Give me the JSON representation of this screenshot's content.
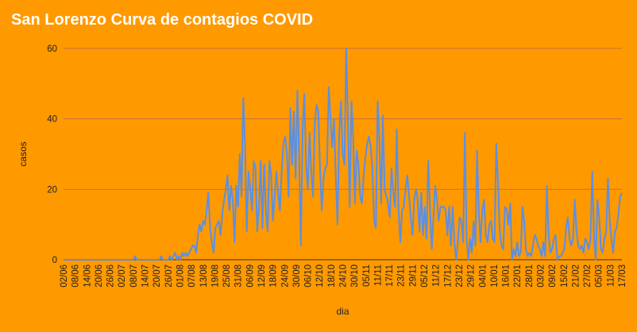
{
  "chart_data": {
    "type": "line",
    "title": "San Lorenzo Curva de contagios COVID",
    "xlabel": "dia",
    "ylabel": "casos",
    "ylim": [
      0,
      60
    ],
    "yticks": [
      0,
      20,
      40,
      60
    ],
    "grid": true,
    "legend": "none",
    "colors": {
      "background": "#FF9900",
      "line": "#5B8FE3",
      "grid": "#C9723A",
      "title": "#FFFFFF",
      "text": "#222222"
    },
    "x_tick_labels": [
      "02/06",
      "08/06",
      "14/06",
      "20/06",
      "26/06",
      "02/07",
      "08/07",
      "14/07",
      "20/07",
      "26/07",
      "01/08",
      "07/08",
      "13/08",
      "19/08",
      "25/08",
      "31/08",
      "06/09",
      "12/09",
      "18/09",
      "24/09",
      "30/09",
      "06/10",
      "12/10",
      "18/10",
      "24/10",
      "30/10",
      "05/11",
      "11/11",
      "17/11",
      "23/11",
      "29/11",
      "05/12",
      "11/12",
      "17/12",
      "23/12",
      "29/12",
      "04/01",
      "10/01",
      "16/01",
      "22/01",
      "28/01",
      "03/02",
      "09/02",
      "15/02",
      "21/02",
      "27/02",
      "05/03",
      "11/03",
      "17/03"
    ],
    "series": [
      {
        "values": [
          0,
          0,
          0,
          0,
          0,
          0,
          0,
          0,
          0,
          0,
          0,
          0,
          0,
          0,
          0,
          0,
          0,
          0,
          0,
          0,
          0,
          0,
          0,
          0,
          0,
          0,
          0,
          0,
          0,
          0,
          0,
          0,
          0,
          0,
          0,
          0,
          0,
          0,
          0,
          0,
          0,
          1,
          0,
          0,
          0,
          0,
          0,
          0,
          0,
          0,
          0,
          0,
          0,
          0,
          0,
          0,
          1,
          0,
          0,
          0,
          0,
          1,
          0,
          1,
          2,
          0,
          1,
          0,
          2,
          1,
          2,
          1,
          2,
          3,
          4,
          4,
          2,
          7,
          10,
          8,
          11,
          10,
          14,
          19,
          9,
          5,
          2,
          9,
          10,
          11,
          7,
          13,
          17,
          20,
          24,
          14,
          21,
          17,
          5,
          21,
          15,
          30,
          18,
          46,
          33,
          8,
          25,
          20,
          14,
          28,
          26,
          8,
          15,
          28,
          9,
          27,
          14,
          8,
          28,
          24,
          11,
          18,
          25,
          19,
          14,
          25,
          33,
          35,
          30,
          18,
          43,
          27,
          42,
          23,
          48,
          30,
          4,
          37,
          47,
          27,
          20,
          36,
          25,
          18,
          39,
          44,
          42,
          26,
          14,
          23,
          26,
          27,
          49,
          40,
          32,
          40,
          24,
          10,
          36,
          45,
          30,
          27,
          60,
          40,
          15,
          45,
          35,
          16,
          31,
          27,
          18,
          16,
          24,
          29,
          33,
          35,
          32,
          26,
          11,
          9,
          45,
          34,
          16,
          41,
          20,
          18,
          16,
          12,
          26,
          19,
          15,
          37,
          14,
          5,
          14,
          15,
          20,
          24,
          18,
          12,
          7,
          17,
          20,
          17,
          8,
          19,
          7,
          15,
          6,
          28,
          15,
          3,
          12,
          21,
          17,
          11,
          15,
          15,
          15,
          14,
          7,
          15,
          4,
          15,
          5,
          0,
          5,
          12,
          11,
          5,
          36,
          6,
          0,
          6,
          2,
          11,
          4,
          31,
          13,
          5,
          14,
          17,
          7,
          5,
          10,
          11,
          6,
          5,
          33,
          22,
          8,
          4,
          3,
          15,
          14,
          10,
          16,
          0,
          3,
          1,
          5,
          1,
          2,
          15,
          11,
          3,
          1,
          2,
          1,
          4,
          7,
          6,
          4,
          3,
          1,
          5,
          1,
          21,
          7,
          2,
          3,
          6,
          7,
          0,
          1,
          1,
          2,
          3,
          9,
          12,
          6,
          4,
          6,
          17,
          8,
          4,
          3,
          4,
          2,
          6,
          5,
          3,
          6,
          25,
          7,
          0,
          17,
          12,
          3,
          2,
          6,
          8,
          23,
          11,
          6,
          2,
          8,
          9,
          13,
          18,
          19
        ]
      }
    ]
  }
}
